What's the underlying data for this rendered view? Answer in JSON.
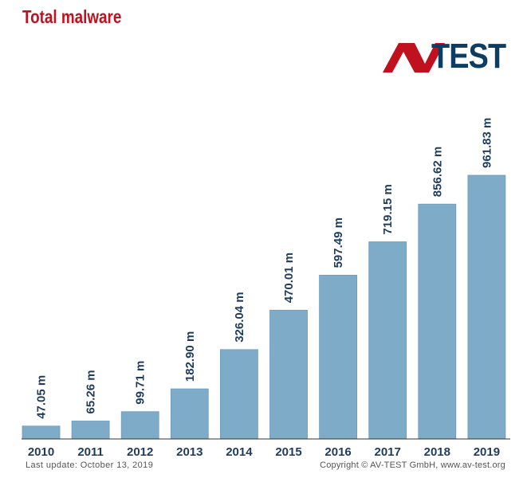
{
  "header": {
    "title": "Total malware"
  },
  "logo": {
    "mark": "AV",
    "text": "TEST",
    "mark_color": "#c0111f",
    "text_color": "#0d3d63"
  },
  "footer": {
    "last_update": "Last update: October 13, 2019",
    "copyright": "Copyright © AV-TEST GmbH, www.av-test.org"
  },
  "colors": {
    "bar": "#7eabc8",
    "bar_edge": "#6f9cbb",
    "label": "#1f3c5c",
    "axis": "#333333"
  },
  "chart_data": {
    "type": "bar",
    "title": "Total malware",
    "categories": [
      "2010",
      "2011",
      "2012",
      "2013",
      "2014",
      "2015",
      "2016",
      "2017",
      "2018",
      "2019"
    ],
    "values": [
      47.05,
      65.26,
      99.71,
      182.9,
      326.04,
      470.01,
      597.49,
      719.15,
      856.62,
      961.83
    ],
    "labels": [
      "47.05 m",
      "65.26 m",
      "99.71 m",
      "182.90 m",
      "326.04 m",
      "470.01 m",
      "597.49 m",
      "719.15 m",
      "856.62 m",
      "961.83 m"
    ],
    "unit": "m",
    "xlabel": "",
    "ylabel": "",
    "grid": false
  }
}
